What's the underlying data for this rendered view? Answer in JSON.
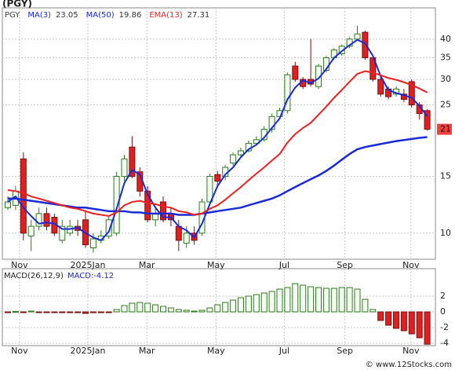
{
  "title": "(PGY)",
  "footer": "© www.12Stocks.com",
  "chart_data": [
    {
      "type": "candlestick",
      "symbol": "PGY",
      "log_scale": true,
      "grid": true,
      "ylim": [
        8.3,
        50
      ],
      "yticks": [
        10,
        15,
        25,
        30,
        35,
        40
      ],
      "xticks": [
        {
          "value": 1.5,
          "label": "Nov"
        },
        {
          "value": 10.3,
          "label": "2025Jan"
        },
        {
          "value": 17.9,
          "label": "Mar"
        },
        {
          "value": 26.8,
          "label": "May"
        },
        {
          "value": 35.6,
          "label": "Jul"
        },
        {
          "value": 43.4,
          "label": "Sep"
        },
        {
          "value": 51.9,
          "label": "Nov"
        }
      ],
      "up_color": "#2f7a1f",
      "down_color": "#e02020",
      "open": [
        12,
        12.2,
        17,
        9.8,
        10.5,
        11.5,
        11.2,
        9.5,
        10,
        10.5,
        11,
        9,
        9.5,
        9.8,
        10,
        15,
        18.5,
        15.5,
        13.5,
        11,
        12.5,
        11.5,
        10.5,
        9.3,
        10,
        10,
        12.5,
        15.2,
        15,
        16.5,
        17.5,
        18,
        19,
        19.5,
        21,
        23,
        24,
        33,
        30,
        30,
        28.5,
        32,
        35,
        36,
        38,
        40,
        42,
        35,
        30,
        28,
        27,
        27,
        29.5,
        25,
        24
      ],
      "high": [
        13,
        14,
        17.8,
        11,
        12,
        12,
        11.5,
        11,
        11,
        11,
        11.8,
        10,
        10.2,
        11.3,
        15.5,
        17.5,
        20,
        16,
        14,
        12,
        13,
        12,
        11,
        10.5,
        10.5,
        12.8,
        15.3,
        15.6,
        16.3,
        17.8,
        18.4,
        19.4,
        20,
        21.5,
        23.5,
        24.5,
        31.5,
        34,
        30.5,
        40,
        33.5,
        35.5,
        37.5,
        38.5,
        40.5,
        44,
        42.5,
        35.5,
        30.5,
        28.5,
        28.5,
        28,
        30,
        25.5,
        24.2
      ],
      "low": [
        11.8,
        11.8,
        9.5,
        8.8,
        10.2,
        10.2,
        9.8,
        9.3,
        9.8,
        9.8,
        9,
        8.7,
        9.3,
        9.6,
        9.8,
        14.5,
        14.8,
        13,
        10.8,
        10.5,
        10.8,
        10.5,
        8.8,
        9,
        9.2,
        9.8,
        12.3,
        14,
        14.6,
        16.2,
        17.2,
        17.8,
        18.8,
        19.2,
        20.5,
        22.5,
        23.5,
        29.5,
        28,
        28.5,
        28,
        31.5,
        34.5,
        35.5,
        37.5,
        39.5,
        34.5,
        29.5,
        26.5,
        26,
        26.5,
        25.5,
        24.5,
        22.5,
        20.8
      ],
      "close": [
        12.5,
        13.5,
        10,
        10.5,
        11.5,
        10.5,
        10,
        10.5,
        10.5,
        10.2,
        9.2,
        9.6,
        9.8,
        11,
        15,
        17,
        15,
        13.5,
        11,
        11.5,
        11,
        11,
        9.5,
        10,
        9.5,
        12.5,
        15,
        14.5,
        16,
        17.5,
        18,
        19,
        19.5,
        21,
        23,
        24,
        31,
        30,
        28.5,
        29,
        33,
        35,
        37,
        38,
        40,
        41.5,
        35,
        30,
        27,
        26.5,
        28,
        26,
        25,
        23.5,
        21
      ],
      "series": [
        {
          "name": "MA(3)",
          "color": "#1a2ad8",
          "width": 2,
          "values": [
            12.5,
            13,
            12,
            11.3,
            10.7,
            10.8,
            10.7,
            10.3,
            10.3,
            10.4,
            10,
            9.7,
            9.5,
            10.1,
            11.9,
            14.3,
            15.7,
            15.2,
            13.2,
            12,
            11.2,
            11.2,
            10.5,
            10.2,
            9.7,
            10.7,
            12.3,
            14,
            15.2,
            16,
            17.2,
            18.2,
            18.8,
            19.8,
            21.2,
            22.7,
            26,
            28.3,
            29.8,
            29.2,
            30.2,
            32.3,
            35,
            36.7,
            38.3,
            39.8,
            38.8,
            35.5,
            30.7,
            27.8,
            27.2,
            26.8,
            26.3,
            24.8,
            23.05
          ]
        },
        {
          "name": "MA(50)",
          "color": "#1a2ad8",
          "width": 2.5,
          "values": [
            12.8,
            12.8,
            12.7,
            12.6,
            12.5,
            12.4,
            12.3,
            12.2,
            12.1,
            12,
            12,
            11.9,
            11.8,
            11.7,
            11.7,
            11.7,
            11.6,
            11.6,
            11.5,
            11.5,
            11.5,
            11.5,
            11.4,
            11.4,
            11.4,
            11.5,
            11.6,
            11.7,
            11.8,
            11.9,
            12,
            12.2,
            12.4,
            12.6,
            12.8,
            13.1,
            13.5,
            13.9,
            14.3,
            14.7,
            15.1,
            15.6,
            16.2,
            16.9,
            17.6,
            18.2,
            18.5,
            18.7,
            18.9,
            19.1,
            19.3,
            19.45,
            19.6,
            19.75,
            19.86
          ]
        },
        {
          "name": "EMA(13)",
          "color": "#ee2020",
          "width": 2,
          "values": [
            13.6,
            13.5,
            13.3,
            13,
            12.8,
            12.6,
            12.4,
            12.2,
            12,
            11.9,
            11.7,
            11.5,
            11.4,
            11.3,
            11.6,
            12.2,
            12.5,
            12.6,
            12.4,
            12.3,
            12.1,
            12,
            11.7,
            11.6,
            11.4,
            11.5,
            11.9,
            12.2,
            12.7,
            13.3,
            13.9,
            14.6,
            15.3,
            16,
            16.8,
            17.6,
            19.1,
            20.3,
            21.2,
            22,
            23.3,
            24.7,
            26.3,
            27.8,
            29.5,
            31.2,
            31.8,
            31.5,
            30.9,
            30.3,
            29.9,
            29.4,
            28.8,
            28.1,
            27.31
          ]
        }
      ]
    },
    {
      "type": "bar",
      "title": "MACD(26,12,9)",
      "value_label": "MACD:-4.12",
      "grid": true,
      "ylim": [
        -4.3,
        5.5
      ],
      "yticks": [
        -4,
        -2,
        0,
        2
      ],
      "xticks": [
        {
          "value": 1.5,
          "label": "Nov"
        },
        {
          "value": 10.3,
          "label": "2025Jan"
        },
        {
          "value": 17.9,
          "label": "Mar"
        },
        {
          "value": 26.8,
          "label": "May"
        },
        {
          "value": 35.6,
          "label": "Jul"
        },
        {
          "value": 43.4,
          "label": "Sep"
        },
        {
          "value": 51.9,
          "label": "Nov"
        }
      ],
      "up_color": "#2f7a1f",
      "down_color": "#e02020",
      "values": [
        -0.1,
        0.05,
        -0.1,
        0.1,
        -0.1,
        -0.1,
        -0.05,
        -0.1,
        -0.1,
        -0.1,
        -0.2,
        -0.1,
        -0.1,
        -0.05,
        0.3,
        0.8,
        1.1,
        1.2,
        1.1,
        0.9,
        0.7,
        0.5,
        0.3,
        0.2,
        0.1,
        0.2,
        0.5,
        0.9,
        1.2,
        1.5,
        1.8,
        2,
        2.2,
        2.4,
        2.6,
        2.9,
        3.1,
        3.6,
        3.4,
        3.2,
        3.1,
        3,
        3,
        3.1,
        3.1,
        2.9,
        1.6,
        0.3,
        -1.1,
        -1.7,
        -2.1,
        -2.4,
        -2.8,
        -3.3,
        -4.12
      ]
    }
  ]
}
